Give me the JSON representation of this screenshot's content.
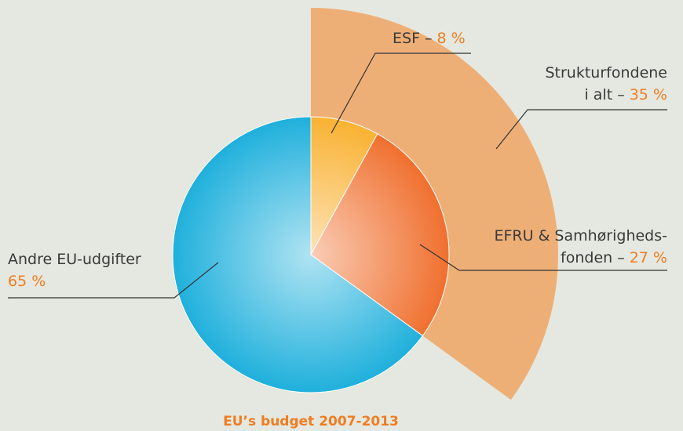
{
  "chart_data": {
    "type": "pie",
    "title": "EU’s budget 2007-2013",
    "categories": [
      [
        "ESF –"
      ],
      [
        "EFRU & Samhørigheds-",
        "fonden –"
      ],
      [
        "Andre EU-udgifter"
      ]
    ],
    "values": [
      8,
      27,
      65
    ],
    "value_labels": [
      "8 %",
      "27 %",
      "65 %"
    ],
    "colors": [
      "#f9b233",
      "#f0702f",
      "#1fb0dc"
    ],
    "highlight": {
      "label": [
        "Strukturfondene",
        "i alt –"
      ],
      "value": 35,
      "value_label": "35 %",
      "color": "#eea86c"
    }
  }
}
